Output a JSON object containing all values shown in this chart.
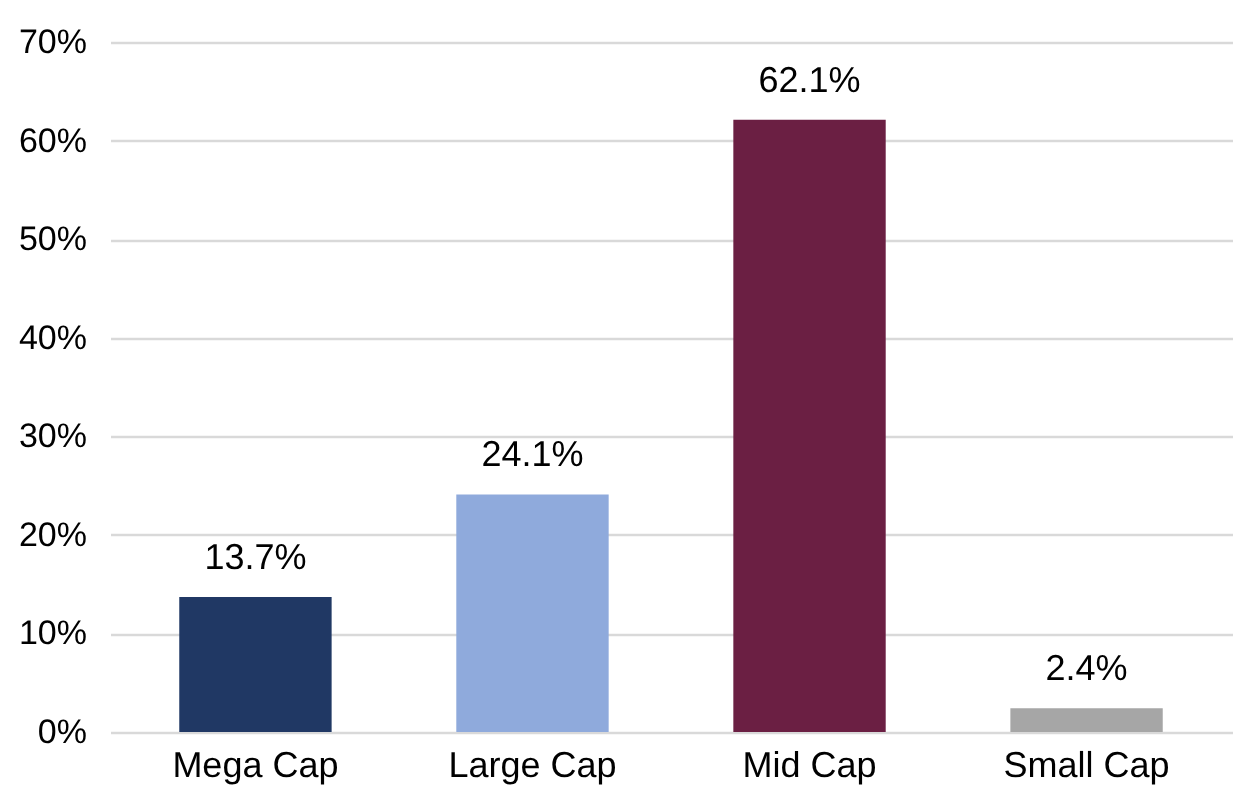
{
  "chart_data": {
    "type": "bar",
    "categories": [
      "Mega Cap",
      "Large Cap",
      "Mid Cap",
      "Small Cap"
    ],
    "values": [
      13.7,
      24.1,
      62.1,
      2.4
    ],
    "colors": [
      "#203864",
      "#8faadc",
      "#6b1f43",
      "#a6a6a6"
    ],
    "value_labels": [
      "13.7%",
      "24.1%",
      "62.1%",
      "2.4%"
    ],
    "ylim": [
      0,
      70
    ],
    "yticks": [
      {
        "value": 0,
        "label": "0%"
      },
      {
        "value": 10,
        "label": "10%"
      },
      {
        "value": 20,
        "label": "20%"
      },
      {
        "value": 30,
        "label": "30%"
      },
      {
        "value": 40,
        "label": "40%"
      },
      {
        "value": 50,
        "label": "50%"
      },
      {
        "value": 60,
        "label": "60%"
      },
      {
        "value": 70,
        "label": "70%"
      }
    ],
    "grid": "y"
  }
}
